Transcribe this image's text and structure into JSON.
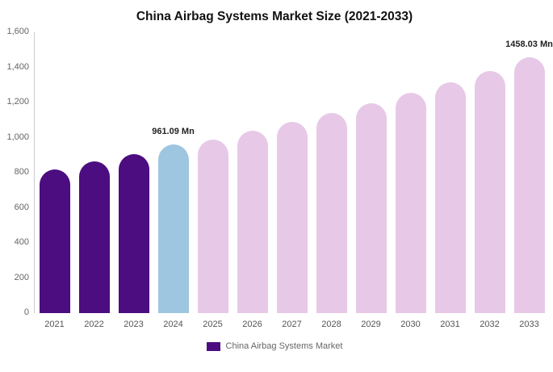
{
  "chart_data": {
    "type": "bar",
    "title": "China Airbag Systems Market Size (2021-2033)",
    "xlabel": "",
    "ylabel": "",
    "categories": [
      "2021",
      "2022",
      "2023",
      "2024",
      "2025",
      "2026",
      "2027",
      "2028",
      "2029",
      "2030",
      "2031",
      "2032",
      "2033"
    ],
    "values": [
      820,
      865,
      905,
      961.09,
      990,
      1040,
      1090,
      1140,
      1195,
      1255,
      1315,
      1380,
      1458.03
    ],
    "unit": "Mn",
    "ylim": [
      0,
      1600
    ],
    "ytick_values": [
      0,
      200,
      400,
      600,
      800,
      1000,
      1200,
      1400,
      1600
    ],
    "ytick_labels": [
      "0",
      "200",
      "400",
      "600",
      "800",
      "1,000",
      "1,200",
      "1,400",
      "1,600"
    ],
    "grid": false,
    "legend": "China Airbag Systems Market",
    "legend_position": "bottom",
    "annotations": [
      {
        "category": "2024",
        "text": "961.09 Mn"
      },
      {
        "category": "2033",
        "text": "1458.03 Mn"
      }
    ],
    "colors": {
      "historical": "#4B0D80",
      "highlight": "#9EC6E0",
      "forecast": "#E7C9E7",
      "legend_swatch": "#4B0D80"
    },
    "bar_colors": [
      "#4B0D80",
      "#4B0D80",
      "#4B0D80",
      "#9EC6E0",
      "#E7C9E7",
      "#E7C9E7",
      "#E7C9E7",
      "#E7C9E7",
      "#E7C9E7",
      "#E7C9E7",
      "#E7C9E7",
      "#E7C9E7",
      "#E7C9E7"
    ]
  }
}
